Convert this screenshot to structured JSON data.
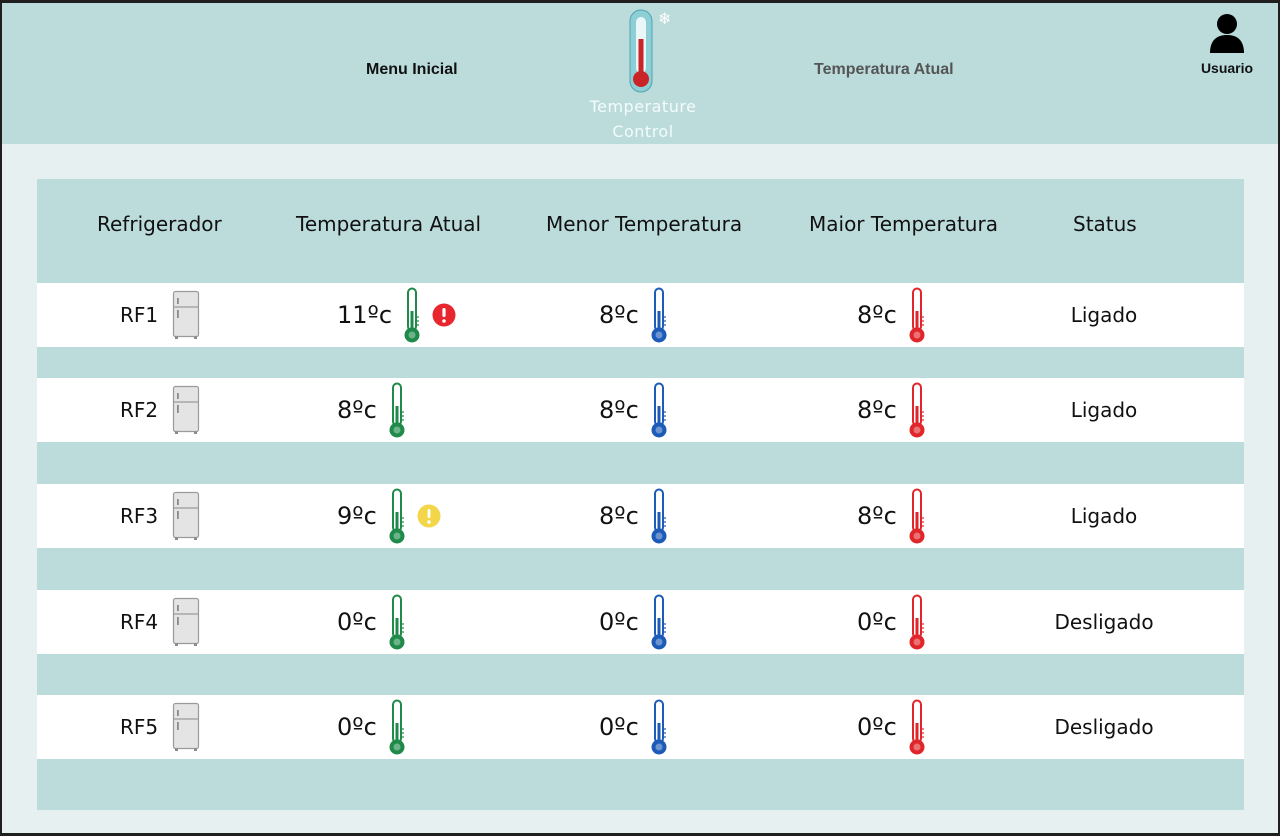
{
  "header": {
    "menu_link": "Menu Inicial",
    "temp_link": "Temperatura Atual",
    "logo_line1": "Temperature",
    "logo_line2": "Control",
    "user_label": "Usuario"
  },
  "table": {
    "columns": [
      "Refrigerador",
      "Temperatura Atual",
      "Menor Temperatura",
      "Maior Temperatura",
      "Status"
    ],
    "rows": [
      {
        "name": "RF1",
        "current": "11ºc",
        "min": "8ºc",
        "max": "8ºc",
        "status": "Ligado",
        "alert": "danger"
      },
      {
        "name": "RF2",
        "current": "8ºc",
        "min": "8ºc",
        "max": "8ºc",
        "status": "Ligado",
        "alert": "none"
      },
      {
        "name": "RF3",
        "current": "9ºc",
        "min": "8ºc",
        "max": "8ºc",
        "status": "Ligado",
        "alert": "warning"
      },
      {
        "name": "RF4",
        "current": "0ºc",
        "min": "0ºc",
        "max": "0ºc",
        "status": "Desligado",
        "alert": "none"
      },
      {
        "name": "RF5",
        "current": "0ºc",
        "min": "0ºc",
        "max": "0ºc",
        "status": "Desligado",
        "alert": "none"
      }
    ]
  },
  "colors": {
    "header_bg": "#bcdcdc",
    "page_bg": "#e6f0f0",
    "thermo_current": "#1f8a4a",
    "thermo_min": "#1d5bb8",
    "thermo_max": "#e0262a",
    "alert_danger": "#e8262e",
    "alert_warning": "#f4d64a"
  },
  "icons": {
    "fridge": "fridge-icon",
    "thermometer": "thermometer-icon",
    "danger": "danger-alert-icon",
    "warning": "warning-alert-icon",
    "user": "user-icon",
    "snowflake": "snowflake-icon"
  }
}
